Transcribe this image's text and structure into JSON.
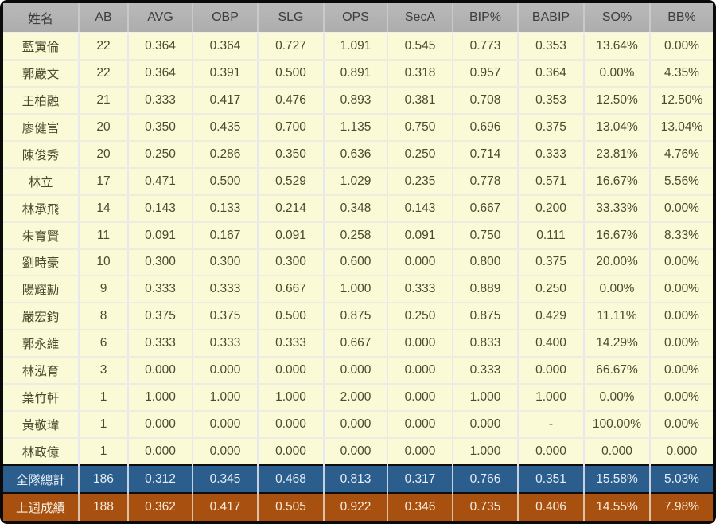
{
  "colors": {
    "frame_border": "#0a0a0a",
    "header_bg": "#b3b3b3",
    "header_text": "#3d3d3d",
    "row_bg": "#fafad6",
    "row_text": "#4a4a2e",
    "team_total_bg": "#2b5e8d",
    "team_total_text": "#e6eef7",
    "last_week_bg": "#a8500f",
    "last_week_text": "#f9ecdc"
  },
  "chart_data": {
    "type": "table",
    "columns": [
      "姓名",
      "AB",
      "AVG",
      "OBP",
      "SLG",
      "OPS",
      "SecA",
      "BIP%",
      "BABIP",
      "SO%",
      "BB%"
    ],
    "rows": [
      [
        "藍寅倫",
        "22",
        "0.364",
        "0.364",
        "0.727",
        "1.091",
        "0.545",
        "0.773",
        "0.353",
        "13.64%",
        "0.00%"
      ],
      [
        "郭嚴文",
        "22",
        "0.364",
        "0.391",
        "0.500",
        "0.891",
        "0.318",
        "0.957",
        "0.364",
        "0.00%",
        "4.35%"
      ],
      [
        "王柏融",
        "21",
        "0.333",
        "0.417",
        "0.476",
        "0.893",
        "0.381",
        "0.708",
        "0.353",
        "12.50%",
        "12.50%"
      ],
      [
        "廖健富",
        "20",
        "0.350",
        "0.435",
        "0.700",
        "1.135",
        "0.750",
        "0.696",
        "0.375",
        "13.04%",
        "13.04%"
      ],
      [
        "陳俊秀",
        "20",
        "0.250",
        "0.286",
        "0.350",
        "0.636",
        "0.250",
        "0.714",
        "0.333",
        "23.81%",
        "4.76%"
      ],
      [
        "林立",
        "17",
        "0.471",
        "0.500",
        "0.529",
        "1.029",
        "0.235",
        "0.778",
        "0.571",
        "16.67%",
        "5.56%"
      ],
      [
        "林承飛",
        "14",
        "0.143",
        "0.133",
        "0.214",
        "0.348",
        "0.143",
        "0.667",
        "0.200",
        "33.33%",
        "0.00%"
      ],
      [
        "朱育賢",
        "11",
        "0.091",
        "0.167",
        "0.091",
        "0.258",
        "0.091",
        "0.750",
        "0.111",
        "16.67%",
        "8.33%"
      ],
      [
        "劉時豪",
        "10",
        "0.300",
        "0.300",
        "0.300",
        "0.600",
        "0.000",
        "0.800",
        "0.375",
        "20.00%",
        "0.00%"
      ],
      [
        "陽耀勳",
        "9",
        "0.333",
        "0.333",
        "0.667",
        "1.000",
        "0.333",
        "0.889",
        "0.250",
        "0.00%",
        "0.00%"
      ],
      [
        "嚴宏鈞",
        "8",
        "0.375",
        "0.375",
        "0.500",
        "0.875",
        "0.250",
        "0.875",
        "0.429",
        "11.11%",
        "0.00%"
      ],
      [
        "郭永維",
        "6",
        "0.333",
        "0.333",
        "0.333",
        "0.667",
        "0.000",
        "0.833",
        "0.400",
        "14.29%",
        "0.00%"
      ],
      [
        "林泓育",
        "3",
        "0.000",
        "0.000",
        "0.000",
        "0.000",
        "0.000",
        "0.333",
        "0.000",
        "66.67%",
        "0.00%"
      ],
      [
        "葉竹軒",
        "1",
        "1.000",
        "1.000",
        "1.000",
        "2.000",
        "0.000",
        "1.000",
        "1.000",
        "0.00%",
        "0.00%"
      ],
      [
        "黃敬瑋",
        "1",
        "0.000",
        "0.000",
        "0.000",
        "0.000",
        "0.000",
        "0.000",
        "-",
        "100.00%",
        "0.00%"
      ],
      [
        "林政億",
        "1",
        "0.000",
        "0.000",
        "0.000",
        "0.000",
        "0.000",
        "1.000",
        "0.000",
        "0.000",
        "0.000"
      ]
    ],
    "summary_rows": [
      {
        "label": "全隊總計",
        "values": [
          "186",
          "0.312",
          "0.345",
          "0.468",
          "0.813",
          "0.317",
          "0.766",
          "0.351",
          "15.58%",
          "5.03%"
        ]
      },
      {
        "label": "上週成績",
        "values": [
          "188",
          "0.362",
          "0.417",
          "0.505",
          "0.922",
          "0.346",
          "0.735",
          "0.406",
          "14.55%",
          "7.98%"
        ]
      }
    ]
  }
}
